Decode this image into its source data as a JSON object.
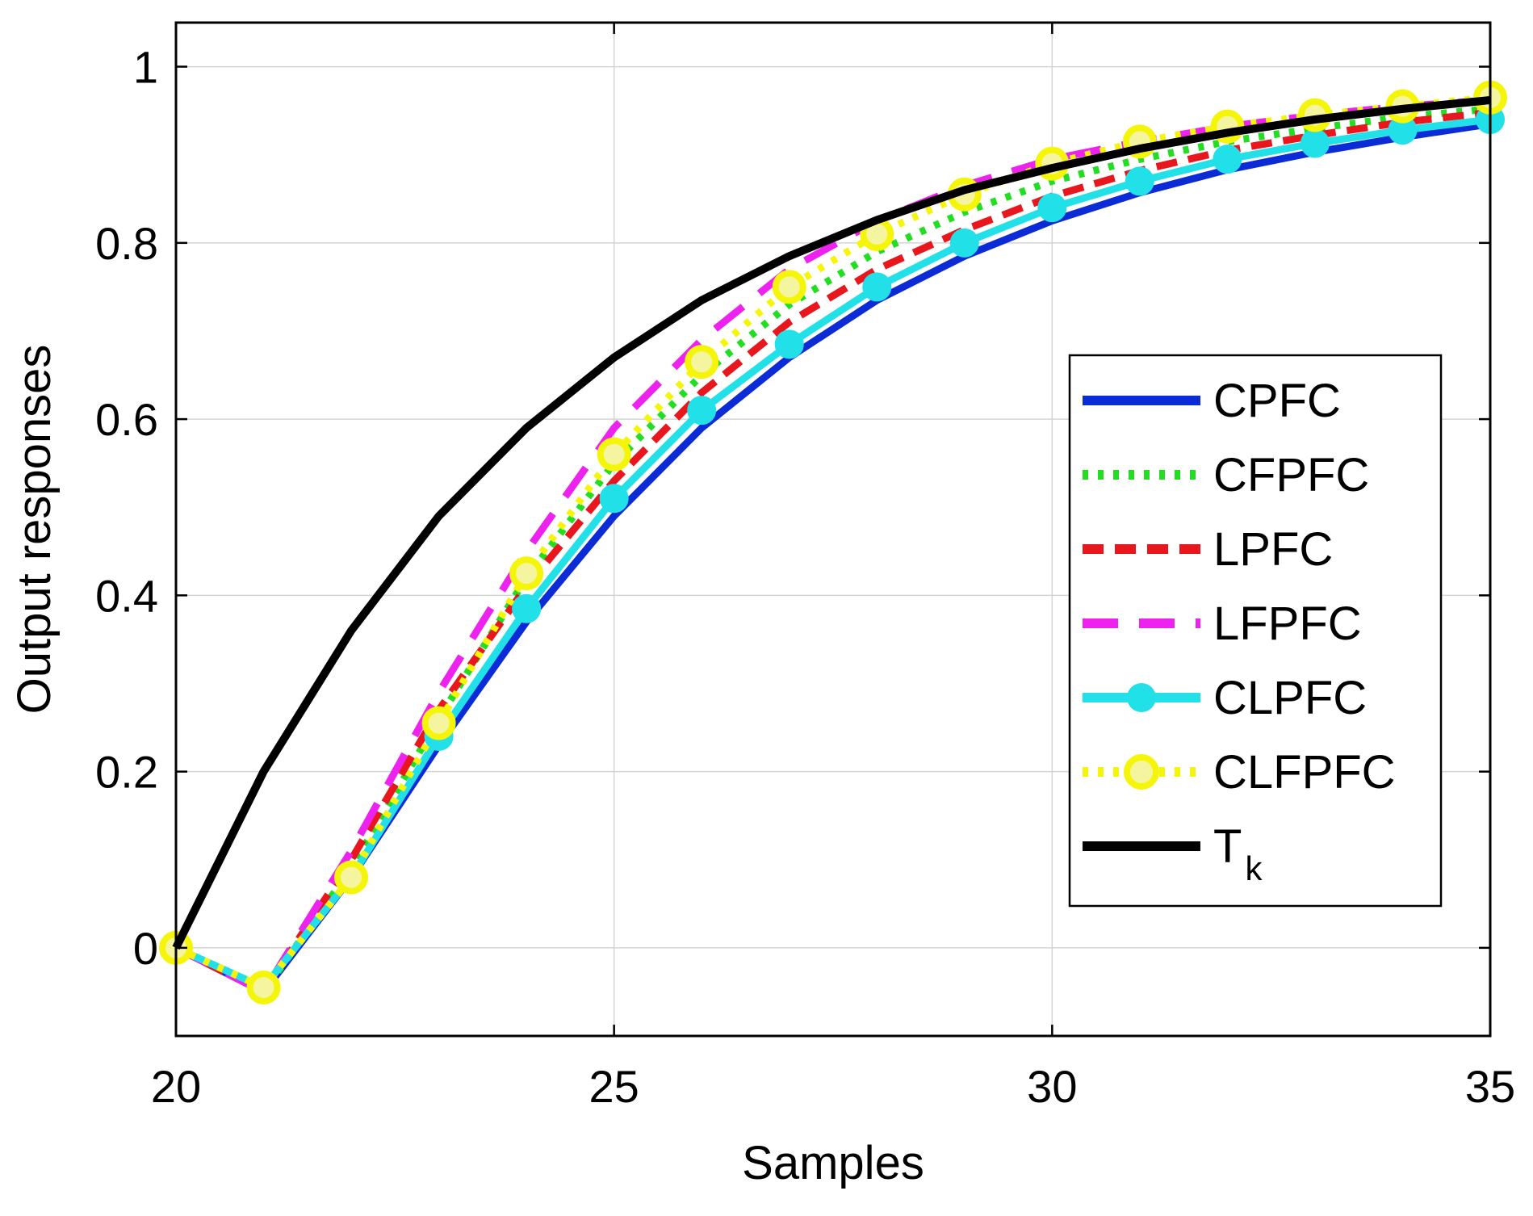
{
  "chart_data": {
    "type": "line",
    "title": "",
    "xlabel": "Samples",
    "ylabel": "Output responses",
    "xlim": [
      20,
      35
    ],
    "ylim": [
      -0.1,
      1.05
    ],
    "xticks": [
      "20",
      "25",
      "30",
      "35"
    ],
    "yticks": [
      "0",
      "0.2",
      "0.4",
      "0.6",
      "0.8",
      "1"
    ],
    "xtick_values": [
      20,
      25,
      30,
      35
    ],
    "ytick_values": [
      0,
      0.2,
      0.4,
      0.6,
      0.8,
      1
    ],
    "grid": true,
    "legend_position": "right-middle",
    "x": [
      20,
      21,
      22,
      23,
      24,
      25,
      26,
      27,
      28,
      29,
      30,
      31,
      32,
      33,
      34,
      35
    ],
    "series": [
      {
        "name": "CPFC",
        "color": "#0b2bd6",
        "style": "solid",
        "marker": "none",
        "values": [
          0,
          -0.05,
          0.08,
          0.23,
          0.37,
          0.49,
          0.59,
          0.67,
          0.735,
          0.785,
          0.825,
          0.857,
          0.883,
          0.903,
          0.92,
          0.935
        ]
      },
      {
        "name": "CFPFC",
        "color": "#22dd22",
        "style": "dotted",
        "marker": "none",
        "values": [
          0,
          -0.05,
          0.09,
          0.26,
          0.42,
          0.55,
          0.65,
          0.73,
          0.79,
          0.835,
          0.87,
          0.895,
          0.915,
          0.93,
          0.943,
          0.952
        ]
      },
      {
        "name": "LPFC",
        "color": "#e8171d",
        "style": "dashed",
        "marker": "none",
        "values": [
          0,
          -0.05,
          0.1,
          0.27,
          0.41,
          0.53,
          0.63,
          0.71,
          0.77,
          0.815,
          0.853,
          0.882,
          0.905,
          0.922,
          0.937,
          0.948
        ]
      },
      {
        "name": "LFPFC",
        "color": "#ee22ee",
        "style": "longdash",
        "marker": "none",
        "values": [
          0,
          -0.05,
          0.11,
          0.29,
          0.45,
          0.59,
          0.69,
          0.77,
          0.825,
          0.865,
          0.895,
          0.915,
          0.932,
          0.945,
          0.955,
          0.962
        ]
      },
      {
        "name": "CLPFC",
        "color": "#22e0e8",
        "style": "solid",
        "marker": "circle",
        "values": [
          0,
          -0.045,
          0.08,
          0.24,
          0.385,
          0.51,
          0.61,
          0.685,
          0.75,
          0.8,
          0.84,
          0.87,
          0.895,
          0.913,
          0.928,
          0.94
        ]
      },
      {
        "name": "CLFPFC",
        "color": "#f5f50a",
        "style": "dotted",
        "marker": "circle",
        "values": [
          0,
          -0.045,
          0.08,
          0.255,
          0.425,
          0.56,
          0.665,
          0.75,
          0.81,
          0.855,
          0.89,
          0.915,
          0.932,
          0.945,
          0.955,
          0.965
        ]
      },
      {
        "name": "T",
        "name_sub": "k",
        "color": "#000000",
        "style": "solid",
        "marker": "none",
        "values": [
          0,
          0.2,
          0.36,
          0.49,
          0.59,
          0.67,
          0.735,
          0.785,
          0.826,
          0.86,
          0.885,
          0.907,
          0.925,
          0.94,
          0.952,
          0.962
        ]
      }
    ]
  }
}
